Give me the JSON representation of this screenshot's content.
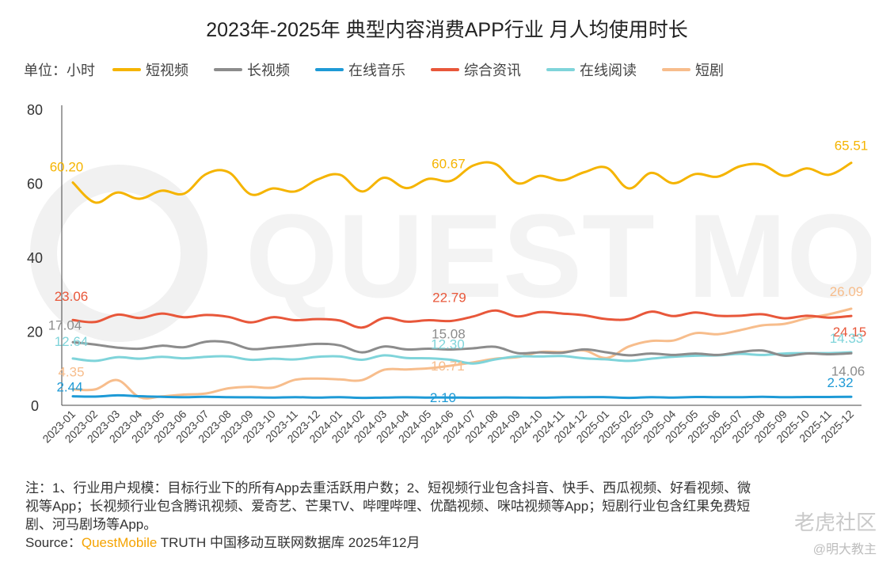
{
  "title": "2023年-2025年 典型内容消费APP行业 月人均使用时长",
  "unit_label": "单位：小时",
  "watermark": "QUEST MOBILE",
  "legend": [
    {
      "name": "短视频",
      "color": "#F5B400"
    },
    {
      "name": "长视频",
      "color": "#8C8C8C"
    },
    {
      "name": "在线音乐",
      "color": "#1E9AD6"
    },
    {
      "name": "综合资讯",
      "color": "#E8573A"
    },
    {
      "name": "在线阅读",
      "color": "#7FD4DA"
    },
    {
      "name": "短剧",
      "color": "#F7BD8C"
    }
  ],
  "chart_data": {
    "type": "line",
    "title": "2023年-2025年 典型内容消费APP行业 月人均使用时长",
    "xlabel": "",
    "ylabel": "单位：小时",
    "ylim": [
      0,
      80
    ],
    "yticks": [
      0,
      20,
      40,
      60,
      80
    ],
    "categories": [
      "2023-01",
      "2023-02",
      "2023-03",
      "2023-04",
      "2023-05",
      "2023-06",
      "2023-07",
      "2023-08",
      "2023-09",
      "2023-10",
      "2023-11",
      "2023-12",
      "2024-01",
      "2024-02",
      "2024-03",
      "2024-04",
      "2024-05",
      "2024-06",
      "2024-07",
      "2024-08",
      "2024-09",
      "2024-10",
      "2024-11",
      "2024-12",
      "2025-01",
      "2025-02",
      "2025-03",
      "2025-04",
      "2025-05",
      "2025-06",
      "2025-07",
      "2025-08",
      "2025-09",
      "2025-10",
      "2025-11",
      "2025-12"
    ],
    "series": [
      {
        "name": "短视频",
        "color": "#F5B400",
        "values": [
          60.2,
          54.8,
          57.5,
          55.8,
          58.0,
          57.2,
          62.5,
          63.0,
          57.0,
          58.6,
          57.8,
          61.0,
          62.3,
          57.8,
          61.5,
          58.7,
          61.2,
          60.67,
          64.8,
          65.2,
          60.0,
          62.0,
          60.8,
          63.0,
          64.2,
          58.6,
          62.8,
          60.0,
          62.5,
          61.8,
          64.6,
          65.0,
          62.0,
          64.0,
          62.3,
          65.51
        ],
        "labels": {
          "0": "60.20",
          "17": "60.67",
          "35": "65.51"
        }
      },
      {
        "name": "长视频",
        "color": "#8C8C8C",
        "values": [
          17.04,
          16.4,
          15.6,
          15.3,
          16.1,
          15.7,
          17.2,
          17.0,
          15.2,
          15.6,
          16.1,
          16.6,
          16.2,
          14.3,
          15.9,
          15.1,
          15.3,
          15.08,
          15.4,
          15.8,
          14.1,
          14.3,
          14.2,
          15.1,
          14.3,
          13.5,
          14.0,
          13.6,
          14.0,
          13.6,
          14.4,
          14.8,
          13.4,
          14.0,
          13.8,
          14.06
        ],
        "labels": {
          "0": "17.04",
          "17": "15.08",
          "35": "14.06"
        }
      },
      {
        "name": "在线音乐",
        "color": "#1E9AD6",
        "values": [
          2.44,
          2.35,
          2.7,
          2.45,
          2.3,
          2.2,
          2.3,
          2.2,
          2.15,
          2.1,
          2.2,
          2.1,
          2.2,
          2.0,
          2.1,
          2.15,
          2.1,
          2.1,
          2.05,
          2.1,
          2.1,
          2.05,
          2.15,
          2.2,
          2.2,
          2.0,
          2.2,
          2.1,
          2.25,
          2.2,
          2.2,
          2.3,
          2.2,
          2.25,
          2.25,
          2.32
        ],
        "labels": {
          "0": "2.44",
          "17": "2.10",
          "35": "2.32"
        }
      },
      {
        "name": "综合资讯",
        "color": "#E8573A",
        "values": [
          23.06,
          22.5,
          24.5,
          23.6,
          24.8,
          23.8,
          24.4,
          23.9,
          22.4,
          23.8,
          23.0,
          23.3,
          22.9,
          21.0,
          23.6,
          22.6,
          23.0,
          22.79,
          24.0,
          25.6,
          24.0,
          25.2,
          24.8,
          24.3,
          23.3,
          23.3,
          25.3,
          24.1,
          25.1,
          24.2,
          24.2,
          24.6,
          23.5,
          24.2,
          23.7,
          24.15
        ],
        "labels": {
          "0": "23.06",
          "17": "22.79",
          "35": "24.15"
        }
      },
      {
        "name": "在线阅读",
        "color": "#7FD4DA",
        "values": [
          12.64,
          12.0,
          13.0,
          12.6,
          13.1,
          12.7,
          13.1,
          13.2,
          12.3,
          12.6,
          12.4,
          13.1,
          13.2,
          12.3,
          13.5,
          12.8,
          12.7,
          12.3,
          11.3,
          12.4,
          13.2,
          13.2,
          13.3,
          12.7,
          12.4,
          12.0,
          12.6,
          13.1,
          13.4,
          13.5,
          13.9,
          13.6,
          14.0,
          14.1,
          14.1,
          14.33
        ],
        "labels": {
          "0": "12.64",
          "17": "12.30",
          "35": "14.33"
        }
      },
      {
        "name": "短剧",
        "color": "#F7BD8C",
        "values": [
          4.35,
          4.3,
          6.8,
          2.2,
          2.4,
          2.9,
          3.2,
          4.6,
          5.0,
          4.8,
          6.9,
          7.2,
          7.0,
          6.8,
          9.6,
          9.7,
          10.0,
          10.71,
          11.6,
          12.6,
          13.0,
          14.4,
          14.4,
          14.8,
          12.8,
          15.9,
          17.4,
          17.5,
          19.5,
          19.2,
          20.3,
          21.6,
          22.0,
          23.5,
          24.6,
          26.09
        ],
        "labels": {
          "0": "4.35",
          "17": "10.71",
          "35": "26.09"
        }
      }
    ]
  },
  "notes": {
    "line1": "注：1、行业用户规模：目标行业下的所有App去重活跃用户数；2、短视频行业包含抖音、快手、西瓜视频、好看视频、微",
    "line2": "视等App；长视频行业包含腾讯视频、爱奇艺、芒果TV、哔哩哔哩、优酷视频、咪咕视频等App；短剧行业包含红果免费短",
    "line3": "剧、河马剧场等App。",
    "source_prefix": "Source：",
    "source_brand": "QuestMobile",
    "source_rest": " TRUTH 中国移动互联网数据库 2025年12月"
  },
  "corner_badge": "老虎社区",
  "corner_user": "@明大教主"
}
